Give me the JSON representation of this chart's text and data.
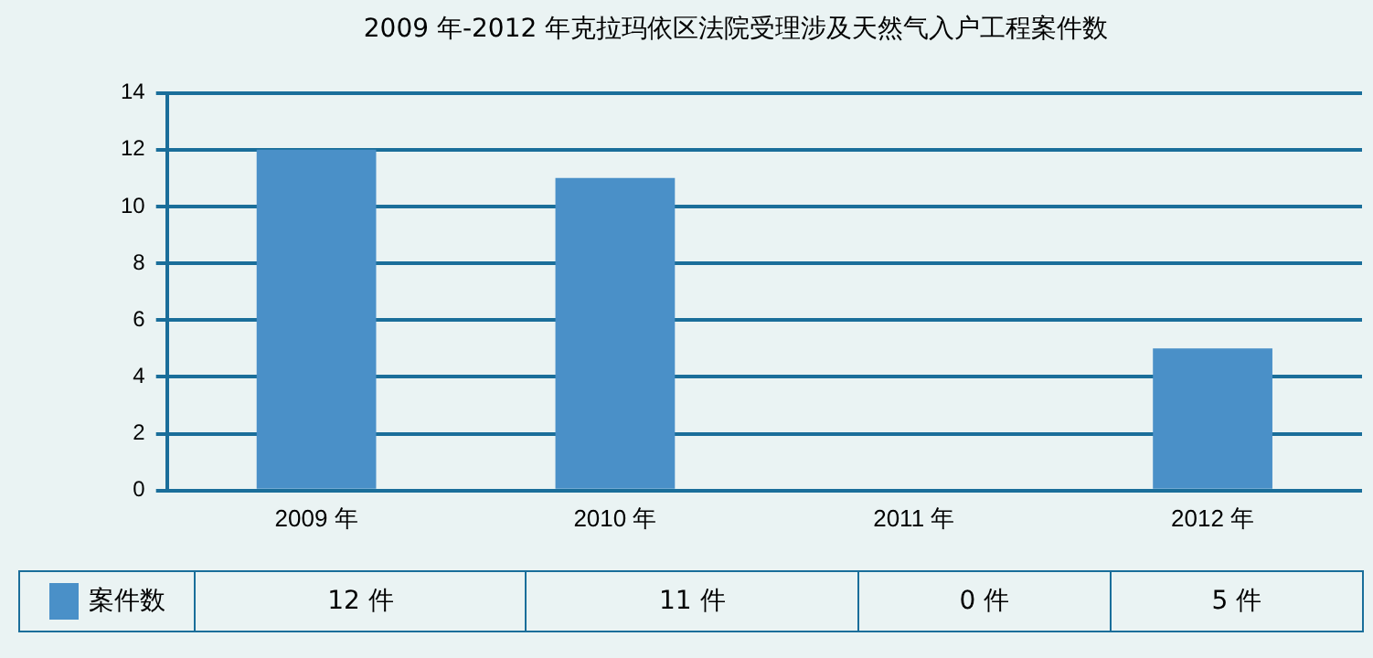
{
  "chart_data": {
    "type": "bar",
    "title": "2009 年-2012 年克拉玛依区法院受理涉及天然气入户工程案件数",
    "categories": [
      "2009 年",
      "2010 年",
      "2011 年",
      "2012 年"
    ],
    "series": [
      {
        "name": "案件数",
        "color": "#4a90c8",
        "values": [
          12,
          11,
          0,
          5
        ],
        "value_labels": [
          "12 件",
          "11 件",
          "0 件",
          "5 件"
        ]
      }
    ],
    "ylim": [
      0,
      14
    ],
    "yticks": [
      0,
      2,
      4,
      6,
      8,
      10,
      12,
      14
    ],
    "grid": "y",
    "legend": "bottom"
  }
}
